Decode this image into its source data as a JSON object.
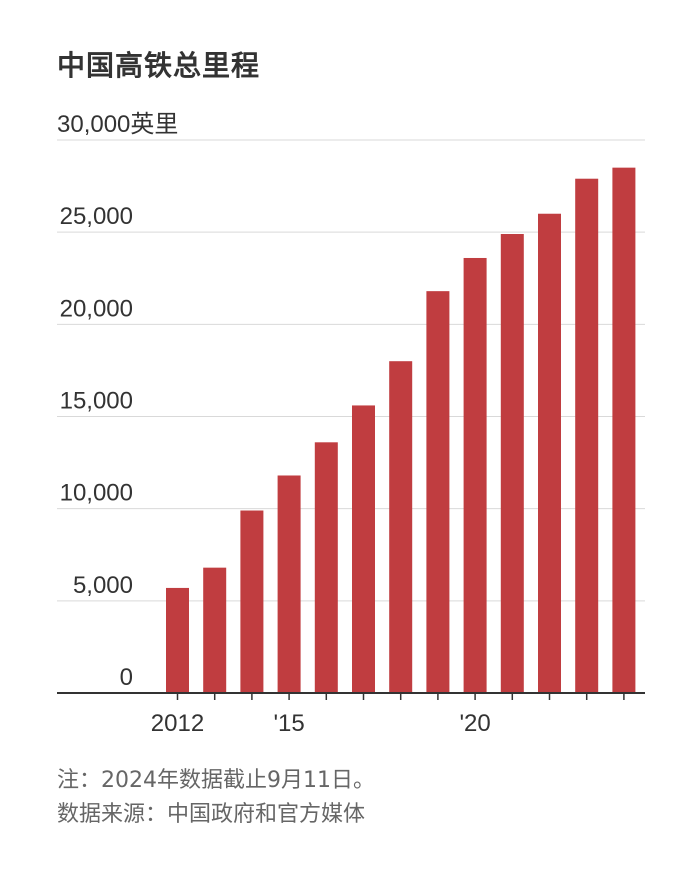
{
  "title": "中国高铁总里程",
  "notes": {
    "note": "注：2024年数据截止9月11日。",
    "source": "数据来源：中国政府和官方媒体"
  },
  "chart_data": {
    "type": "bar",
    "title": "中国高铁总里程",
    "unit": "英里",
    "categories": [
      "2012",
      "2013",
      "2014",
      "2015",
      "2016",
      "2017",
      "2018",
      "2019",
      "2020",
      "2021",
      "2022",
      "2023",
      "2024"
    ],
    "values": [
      5700,
      6800,
      9900,
      11800,
      13600,
      15600,
      18000,
      21800,
      23600,
      24900,
      26000,
      27900,
      28500
    ],
    "ylim": [
      0,
      30000
    ],
    "yticks": [
      0,
      5000,
      10000,
      15000,
      20000,
      25000,
      30000
    ],
    "ytick_labels": [
      "0",
      "5,000",
      "10,000",
      "15,000",
      "20,000",
      "25,000",
      "30,000英里"
    ],
    "xtick_labels": [
      {
        "category": "2012",
        "label": "2012"
      },
      {
        "category": "2015",
        "label": "'15"
      },
      {
        "category": "2020",
        "label": "'20"
      }
    ],
    "grid": true,
    "bar_color": "#c03d40",
    "grid_color": "#d9d9d9",
    "axis_color": "#333333"
  }
}
